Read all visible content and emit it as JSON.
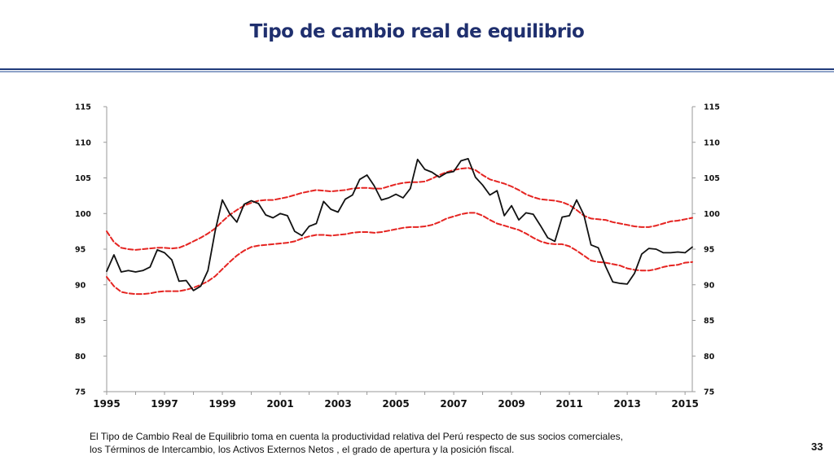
{
  "slide": {
    "title": "Tipo de cambio real de equilibrio",
    "footnote_line1": "El Tipo de Cambio Real de Equilibrio toma en cuenta la productividad relativa del Perú respecto de sus socios comerciales,",
    "footnote_line2": "los Términos de Intercambio, los Activos Externos Netos , el grado de apertura y la posición fiscal.",
    "page_number": "33"
  },
  "colors": {
    "title": "#1f2f6e",
    "actual": "#111111",
    "band": "#e52421"
  },
  "chart_data": {
    "type": "line",
    "title": "",
    "xlabel": "",
    "ylabel": "",
    "xlim": [
      1995,
      2015.25
    ],
    "ylim": [
      75,
      115
    ],
    "y_ticks": [
      75,
      80,
      85,
      90,
      95,
      100,
      105,
      110,
      115
    ],
    "y_tick_labels": [
      "75",
      "80",
      "85",
      "90",
      "95",
      "100",
      "105",
      "110",
      "115"
    ],
    "x_ticks": [
      1995,
      1997,
      1999,
      2001,
      2003,
      2005,
      2007,
      2009,
      2011,
      2013,
      2015
    ],
    "x_tick_labels": [
      "1995",
      "1997",
      "1999",
      "2001",
      "2003",
      "2005",
      "2007",
      "2009",
      "2011",
      "2013",
      "2015"
    ],
    "dual_y_axis": true,
    "grid": false,
    "legend": "none",
    "series": [
      {
        "style": "solid-black",
        "x": [
          1995.0,
          1995.25,
          1995.5,
          1995.75,
          1996.0,
          1996.25,
          1996.5,
          1996.75,
          1997.0,
          1997.25,
          1997.5,
          1997.75,
          1998.0,
          1998.25,
          1998.5,
          1998.75,
          1999.0,
          1999.25,
          1999.5,
          1999.75,
          2000.0,
          2000.25,
          2000.5,
          2000.75,
          2001.0,
          2001.25,
          2001.5,
          2001.75,
          2002.0,
          2002.25,
          2002.5,
          2002.75,
          2003.0,
          2003.25,
          2003.5,
          2003.75,
          2004.0,
          2004.25,
          2004.5,
          2004.75,
          2005.0,
          2005.25,
          2005.5,
          2005.75,
          2006.0,
          2006.25,
          2006.5,
          2006.75,
          2007.0,
          2007.25,
          2007.5,
          2007.75,
          2008.0,
          2008.25,
          2008.5,
          2008.75,
          2009.0,
          2009.25,
          2009.5,
          2009.75,
          2010.0,
          2010.25,
          2010.5,
          2010.75,
          2011.0,
          2011.25,
          2011.5,
          2011.75,
          2012.0,
          2012.25,
          2012.5,
          2012.75,
          2013.0,
          2013.25,
          2013.5,
          2013.75,
          2014.0,
          2014.25,
          2014.5,
          2014.75,
          2015.0,
          2015.25
        ],
        "values": [
          91.9,
          94.2,
          91.8,
          92.0,
          91.8,
          92.0,
          92.5,
          94.9,
          94.5,
          93.5,
          90.5,
          90.6,
          89.2,
          89.8,
          92.0,
          97.5,
          101.9,
          100.0,
          98.8,
          101.3,
          101.8,
          101.4,
          99.8,
          99.4,
          100.0,
          99.7,
          97.5,
          96.9,
          98.2,
          98.6,
          101.7,
          100.6,
          100.2,
          102.0,
          102.6,
          104.8,
          105.4,
          103.9,
          101.9,
          102.2,
          102.7,
          102.2,
          103.5,
          107.6,
          106.2,
          105.8,
          105.1,
          105.7,
          105.9,
          107.4,
          107.7,
          105.1,
          104.0,
          102.6,
          103.2,
          99.7,
          101.1,
          99.1,
          100.1,
          99.9,
          98.3,
          96.6,
          96.1,
          99.5,
          99.7,
          101.9,
          99.8,
          95.6,
          95.2,
          92.6,
          90.4,
          90.2,
          90.1,
          91.6,
          94.3,
          95.1,
          95.0,
          94.5,
          94.5,
          94.6,
          94.5,
          95.3
        ]
      },
      {
        "style": "dashed-red-upper",
        "x": [
          1995.0,
          1995.25,
          1995.5,
          1995.75,
          1996.0,
          1996.25,
          1996.5,
          1996.75,
          1997.0,
          1997.25,
          1997.5,
          1997.75,
          1998.0,
          1998.25,
          1998.5,
          1998.75,
          1999.0,
          1999.25,
          1999.5,
          1999.75,
          2000.0,
          2000.25,
          2000.5,
          2000.75,
          2001.0,
          2001.25,
          2001.5,
          2001.75,
          2002.0,
          2002.25,
          2002.5,
          2002.75,
          2003.0,
          2003.25,
          2003.5,
          2003.75,
          2004.0,
          2004.25,
          2004.5,
          2004.75,
          2005.0,
          2005.25,
          2005.5,
          2005.75,
          2006.0,
          2006.25,
          2006.5,
          2006.75,
          2007.0,
          2007.25,
          2007.5,
          2007.75,
          2008.0,
          2008.25,
          2008.5,
          2008.75,
          2009.0,
          2009.25,
          2009.5,
          2009.75,
          2010.0,
          2010.25,
          2010.5,
          2010.75,
          2011.0,
          2011.25,
          2011.5,
          2011.75,
          2012.0,
          2012.25,
          2012.5,
          2012.75,
          2013.0,
          2013.25,
          2013.5,
          2013.75,
          2014.0,
          2014.25,
          2014.5,
          2014.75,
          2015.0,
          2015.25
        ],
        "values": [
          97.5,
          96.0,
          95.2,
          95.0,
          94.9,
          95.0,
          95.1,
          95.2,
          95.2,
          95.1,
          95.2,
          95.6,
          96.1,
          96.6,
          97.2,
          97.9,
          98.9,
          99.8,
          100.5,
          101.1,
          101.5,
          101.8,
          101.9,
          101.9,
          102.1,
          102.3,
          102.6,
          102.9,
          103.1,
          103.3,
          103.2,
          103.1,
          103.2,
          103.3,
          103.5,
          103.6,
          103.6,
          103.5,
          103.5,
          103.8,
          104.1,
          104.3,
          104.4,
          104.4,
          104.5,
          104.9,
          105.4,
          105.8,
          106.1,
          106.3,
          106.4,
          106.1,
          105.4,
          104.8,
          104.5,
          104.2,
          103.8,
          103.3,
          102.7,
          102.3,
          102.0,
          101.9,
          101.8,
          101.6,
          101.2,
          100.5,
          99.7,
          99.3,
          99.2,
          99.1,
          98.8,
          98.6,
          98.4,
          98.2,
          98.1,
          98.1,
          98.3,
          98.6,
          98.9,
          99.0,
          99.2,
          99.4
        ]
      },
      {
        "style": "dashed-red-lower",
        "x": [
          1995.0,
          1995.25,
          1995.5,
          1995.75,
          1996.0,
          1996.25,
          1996.5,
          1996.75,
          1997.0,
          1997.25,
          1997.5,
          1997.75,
          1998.0,
          1998.25,
          1998.5,
          1998.75,
          1999.0,
          1999.25,
          1999.5,
          1999.75,
          2000.0,
          2000.25,
          2000.5,
          2000.75,
          2001.0,
          2001.25,
          2001.5,
          2001.75,
          2002.0,
          2002.25,
          2002.5,
          2002.75,
          2003.0,
          2003.25,
          2003.5,
          2003.75,
          2004.0,
          2004.25,
          2004.5,
          2004.75,
          2005.0,
          2005.25,
          2005.5,
          2005.75,
          2006.0,
          2006.25,
          2006.5,
          2006.75,
          2007.0,
          2007.25,
          2007.5,
          2007.75,
          2008.0,
          2008.25,
          2008.5,
          2008.75,
          2009.0,
          2009.25,
          2009.5,
          2009.75,
          2010.0,
          2010.25,
          2010.5,
          2010.75,
          2011.0,
          2011.25,
          2011.5,
          2011.75,
          2012.0,
          2012.25,
          2012.5,
          2012.75,
          2013.0,
          2013.25,
          2013.5,
          2013.75,
          2014.0,
          2014.25,
          2014.5,
          2014.75,
          2015.0,
          2015.25
        ],
        "values": [
          91.1,
          89.8,
          89.0,
          88.8,
          88.7,
          88.7,
          88.8,
          89.0,
          89.1,
          89.1,
          89.1,
          89.3,
          89.6,
          90.0,
          90.5,
          91.2,
          92.2,
          93.2,
          94.1,
          94.8,
          95.3,
          95.5,
          95.6,
          95.7,
          95.8,
          95.9,
          96.1,
          96.5,
          96.8,
          97.0,
          97.0,
          96.9,
          97.0,
          97.1,
          97.3,
          97.4,
          97.4,
          97.3,
          97.4,
          97.6,
          97.8,
          98.0,
          98.1,
          98.1,
          98.2,
          98.4,
          98.8,
          99.3,
          99.6,
          99.9,
          100.1,
          100.1,
          99.7,
          99.1,
          98.6,
          98.3,
          98.0,
          97.7,
          97.2,
          96.6,
          96.1,
          95.8,
          95.7,
          95.7,
          95.4,
          94.8,
          94.1,
          93.4,
          93.2,
          93.1,
          92.9,
          92.7,
          92.3,
          92.1,
          92.0,
          92.0,
          92.2,
          92.5,
          92.7,
          92.8,
          93.1,
          93.2
        ]
      }
    ]
  }
}
